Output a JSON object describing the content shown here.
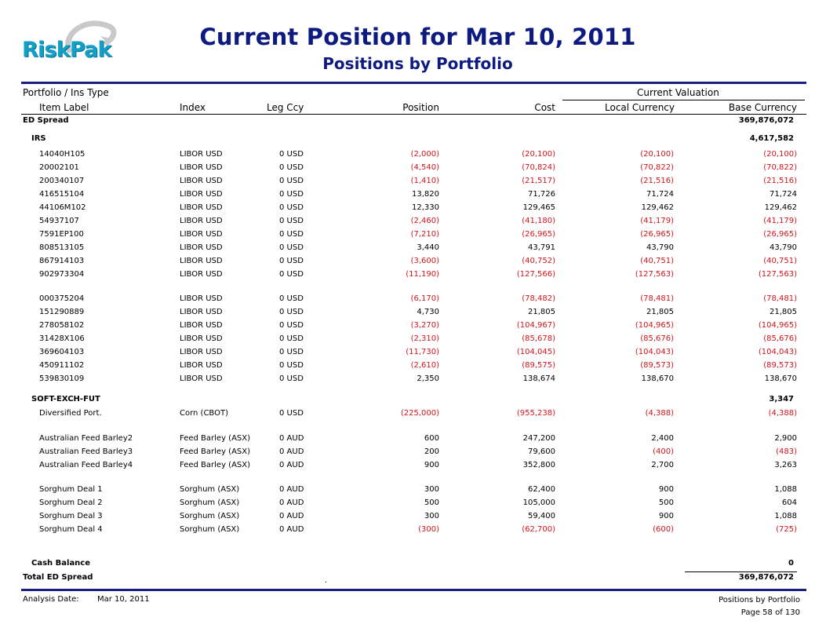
{
  "logo": {
    "text": "RiskPak"
  },
  "report": {
    "title": "Current Position for Mar 10, 2011",
    "subtitle": "Positions by Portfolio"
  },
  "columns": {
    "portfolio": "Portfolio / Ins Type",
    "current_valuation": "Current Valuation",
    "item": "Item Label",
    "index": "Index",
    "legccy": "Leg Ccy",
    "position": "Position",
    "cost": "Cost",
    "local": "Local Currency",
    "base": "Base Currency"
  },
  "portfolio": {
    "name": "ED Spread",
    "total": "369,876,072"
  },
  "groups": [
    {
      "name": "IRS",
      "total": "4,617,582",
      "blocks": [
        [
          {
            "label": "14040H105",
            "index": "LIBOR USD",
            "legccy": "0 USD",
            "position": "(2,000)",
            "cost": "(20,100)",
            "local": "(20,100)",
            "base": "(20,100)"
          },
          {
            "label": "20002101",
            "index": "LIBOR USD",
            "legccy": "0 USD",
            "position": "(4,540)",
            "cost": "(70,824)",
            "local": "(70,822)",
            "base": "(70,822)"
          },
          {
            "label": "200340107",
            "index": "LIBOR USD",
            "legccy": "0 USD",
            "position": "(1,410)",
            "cost": "(21,517)",
            "local": "(21,516)",
            "base": "(21,516)"
          },
          {
            "label": "416515104",
            "index": "LIBOR USD",
            "legccy": "0 USD",
            "position": "13,820",
            "cost": "71,726",
            "local": "71,724",
            "base": "71,724"
          },
          {
            "label": "44106M102",
            "index": "LIBOR USD",
            "legccy": "0 USD",
            "position": "12,330",
            "cost": "129,465",
            "local": "129,462",
            "base": "129,462"
          },
          {
            "label": "54937107",
            "index": "LIBOR USD",
            "legccy": "0 USD",
            "position": "(2,460)",
            "cost": "(41,180)",
            "local": "(41,179)",
            "base": "(41,179)"
          },
          {
            "label": "7591EP100",
            "index": "LIBOR USD",
            "legccy": "0 USD",
            "position": "(7,210)",
            "cost": "(26,965)",
            "local": "(26,965)",
            "base": "(26,965)"
          },
          {
            "label": "808513105",
            "index": "LIBOR USD",
            "legccy": "0 USD",
            "position": "3,440",
            "cost": "43,791",
            "local": "43,790",
            "base": "43,790"
          },
          {
            "label": "867914103",
            "index": "LIBOR USD",
            "legccy": "0 USD",
            "position": "(3,600)",
            "cost": "(40,752)",
            "local": "(40,751)",
            "base": "(40,751)"
          },
          {
            "label": "902973304",
            "index": "LIBOR USD",
            "legccy": "0 USD",
            "position": "(11,190)",
            "cost": "(127,566)",
            "local": "(127,563)",
            "base": "(127,563)"
          }
        ],
        [
          {
            "label": "000375204",
            "index": "LIBOR USD",
            "legccy": "0 USD",
            "position": "(6,170)",
            "cost": "(78,482)",
            "local": "(78,481)",
            "base": "(78,481)"
          },
          {
            "label": "151290889",
            "index": "LIBOR USD",
            "legccy": "0 USD",
            "position": "4,730",
            "cost": "21,805",
            "local": "21,805",
            "base": "21,805"
          },
          {
            "label": "278058102",
            "index": "LIBOR USD",
            "legccy": "0 USD",
            "position": "(3,270)",
            "cost": "(104,967)",
            "local": "(104,965)",
            "base": "(104,965)"
          },
          {
            "label": "31428X106",
            "index": "LIBOR USD",
            "legccy": "0 USD",
            "position": "(2,310)",
            "cost": "(85,678)",
            "local": "(85,676)",
            "base": "(85,676)"
          },
          {
            "label": "369604103",
            "index": "LIBOR USD",
            "legccy": "0 USD",
            "position": "(11,730)",
            "cost": "(104,045)",
            "local": "(104,043)",
            "base": "(104,043)"
          },
          {
            "label": "450911102",
            "index": "LIBOR USD",
            "legccy": "0 USD",
            "position": "(2,610)",
            "cost": "(89,575)",
            "local": "(89,573)",
            "base": "(89,573)"
          },
          {
            "label": "539830109",
            "index": "LIBOR USD",
            "legccy": "0 USD",
            "position": "2,350",
            "cost": "138,674",
            "local": "138,670",
            "base": "138,670"
          }
        ]
      ]
    },
    {
      "name": "SOFT-EXCH-FUT",
      "total": "3,347",
      "blocks": [
        [
          {
            "label": "Diversified Port.",
            "index": "Corn (CBOT)",
            "legccy": "0 USD",
            "position": "(225,000)",
            "cost": "(955,238)",
            "local": "(4,388)",
            "base": "(4,388)"
          }
        ],
        [
          {
            "label": "Australian Feed Barley2",
            "index": "Feed Barley (ASX)",
            "legccy": "0 AUD",
            "position": "600",
            "cost": "247,200",
            "local": "2,400",
            "base": "2,900"
          },
          {
            "label": "Australian Feed Barley3",
            "index": "Feed Barley (ASX)",
            "legccy": "0 AUD",
            "position": "200",
            "cost": "79,600",
            "local": "(400)",
            "base": "(483)"
          },
          {
            "label": "Australian Feed Barley4",
            "index": "Feed Barley (ASX)",
            "legccy": "0 AUD",
            "position": "900",
            "cost": "352,800",
            "local": "2,700",
            "base": "3,263"
          }
        ],
        [
          {
            "label": "Sorghum Deal 1",
            "index": "Sorghum (ASX)",
            "legccy": "0 AUD",
            "position": "300",
            "cost": "62,400",
            "local": "900",
            "base": "1,088"
          },
          {
            "label": "Sorghum Deal 2",
            "index": "Sorghum (ASX)",
            "legccy": "0 AUD",
            "position": "500",
            "cost": "105,000",
            "local": "500",
            "base": "604"
          },
          {
            "label": "Sorghum Deal 3",
            "index": "Sorghum (ASX)",
            "legccy": "0 AUD",
            "position": "300",
            "cost": "59,400",
            "local": "900",
            "base": "1,088"
          },
          {
            "label": "Sorghum Deal 4",
            "index": "Sorghum (ASX)",
            "legccy": "0 AUD",
            "position": "(300)",
            "cost": "(62,700)",
            "local": "(600)",
            "base": "(725)"
          }
        ]
      ]
    }
  ],
  "cash_balance": {
    "label": "Cash Balance",
    "value": "0"
  },
  "total": {
    "label": "Total ED Spread",
    "value": "369,876,072"
  },
  "footer": {
    "analysis_label": "Analysis Date:",
    "analysis_date": "Mar 10, 2011",
    "report_name": "Positions by Portfolio",
    "page": "Page 58 of 130"
  },
  "colors": {
    "title": "#0d1a80",
    "negative": "#d0151b",
    "rule": "#1a1f80",
    "logo": "#12a0c8"
  }
}
